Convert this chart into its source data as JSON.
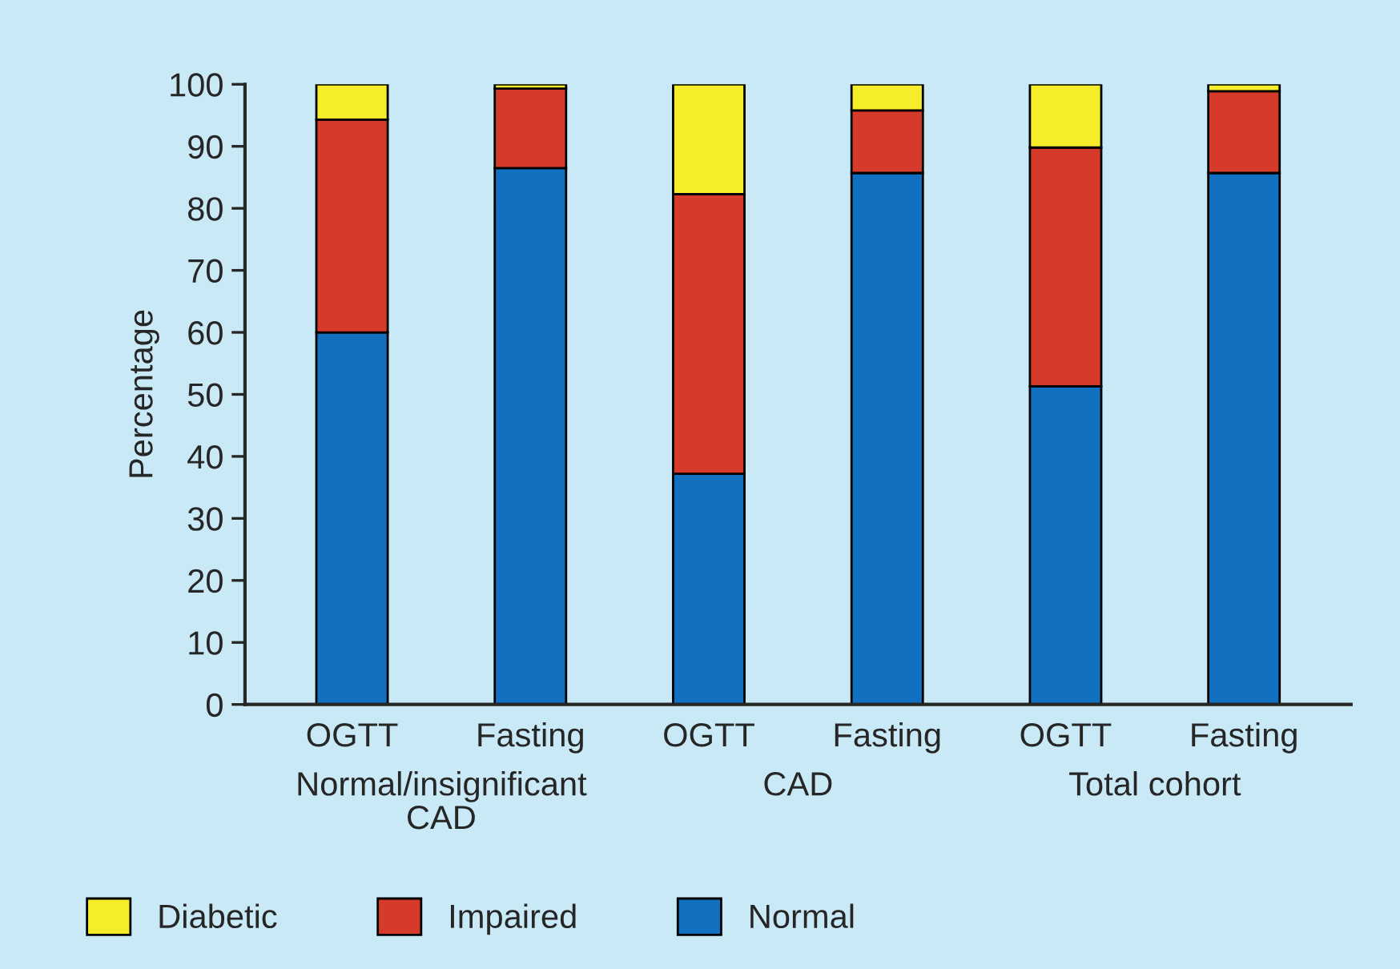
{
  "chart_data": {
    "type": "bar",
    "stacked": true,
    "ylabel": "Percentage",
    "categories": [
      "OGTT",
      "Fasting",
      "OGTT",
      "Fasting",
      "OGTT",
      "Fasting"
    ],
    "series": [
      {
        "name": "Normal",
        "color": "#1170c0",
        "values": [
          60,
          86.5,
          37.2,
          85.7,
          51.3,
          85.7
        ]
      },
      {
        "name": "Impaired",
        "color": "#d63a2a",
        "values": [
          34.3,
          12.8,
          45.1,
          10.1,
          38.5,
          13.2
        ]
      },
      {
        "name": "Diabetic",
        "color": "#f5ec2a",
        "values": [
          5.7,
          0.7,
          17.7,
          4.2,
          10.2,
          1.1
        ]
      }
    ],
    "annotations": [
      "Normal/insignificant\nCAD",
      "CAD",
      "Total cohort"
    ],
    "ylim": [
      0,
      100
    ],
    "yticks": [
      0,
      10,
      20,
      30,
      40,
      50,
      60,
      70,
      80,
      90,
      100
    ],
    "legend": "bottom",
    "grid": false
  }
}
